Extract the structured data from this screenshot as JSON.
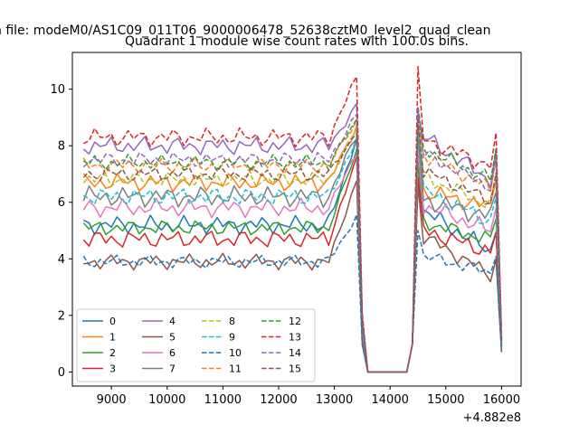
{
  "chart_data": {
    "type": "line",
    "suptitle": "n file: modeM0/AS1C09_011T06_9000006478_52638cztM0_level2_quad_clean",
    "title": "Quadrant 1 module wise count rates with 100.0s bins.",
    "xlabel": "",
    "ylabel": "",
    "offset_text": "+4.882e8",
    "xlim": [
      8300,
      16350
    ],
    "ylim": [
      -0.5,
      11.3
    ],
    "xticks": [
      9000,
      10000,
      11000,
      12000,
      13000,
      14000,
      15000,
      16000
    ],
    "yticks": [
      0,
      2,
      4,
      6,
      8,
      10
    ],
    "legend": {
      "position": "lower-left",
      "ncol": 4
    },
    "series": [
      {
        "name": "0",
        "color": "#1f77b4",
        "dash": "solid",
        "base": 5.2,
        "peak": 8.3,
        "after": 5.2,
        "ptA": 7.6,
        "ptB": 5.7,
        "end": 0.9,
        "amp": 0.35
      },
      {
        "name": "1",
        "color": "#ff7f0e",
        "dash": "solid",
        "base": 6.7,
        "peak": 8.7,
        "after": 7.1,
        "ptA": 8.6,
        "ptB": 6.4,
        "end": 1.1,
        "amp": 0.35
      },
      {
        "name": "2",
        "color": "#2ca02c",
        "dash": "solid",
        "base": 5.1,
        "peak": 7.8,
        "after": 5.7,
        "ptA": 7.4,
        "ptB": 5.3,
        "end": 1.0,
        "amp": 0.3
      },
      {
        "name": "3",
        "color": "#d62728",
        "dash": "solid",
        "base": 4.7,
        "peak": 7.5,
        "after": 5.2,
        "ptA": 6.9,
        "ptB": 5.0,
        "end": 0.8,
        "amp": 0.35
      },
      {
        "name": "4",
        "color": "#9467bd",
        "dash": "solid",
        "base": 8.0,
        "peak": 9.4,
        "after": 8.3,
        "ptA": 9.1,
        "ptB": 8.3,
        "end": 1.2,
        "amp": 0.35
      },
      {
        "name": "5",
        "color": "#8c564b",
        "dash": "solid",
        "base": 3.9,
        "peak": 6.8,
        "after": 4.2,
        "ptA": 6.6,
        "ptB": 4.8,
        "end": 0.7,
        "amp": 0.3
      },
      {
        "name": "6",
        "color": "#e377c2",
        "dash": "solid",
        "base": 5.8,
        "peak": 7.8,
        "after": 6.1,
        "ptA": 7.9,
        "ptB": 5.9,
        "end": 0.9,
        "amp": 0.35
      },
      {
        "name": "7",
        "color": "#7f7f7f",
        "dash": "solid",
        "base": 6.2,
        "peak": 8.4,
        "after": 6.7,
        "ptA": 8.4,
        "ptB": 6.1,
        "end": 0.9,
        "amp": 0.4
      },
      {
        "name": "8",
        "color": "#bcbd22",
        "dash": "dashed",
        "base": 6.8,
        "peak": 8.6,
        "after": 7.2,
        "ptA": 8.7,
        "ptB": 6.9,
        "end": 1.0,
        "amp": 0.3
      },
      {
        "name": "9",
        "color": "#17becf",
        "dash": "dashed",
        "base": 6.2,
        "peak": 8.2,
        "after": 6.5,
        "ptA": 8.6,
        "ptB": 6.4,
        "end": 1.0,
        "amp": 0.35
      },
      {
        "name": "10",
        "color": "#1f77b4",
        "dash": "dashed",
        "base": 3.9,
        "peak": 5.5,
        "after": 4.3,
        "ptA": 5.0,
        "ptB": 4.1,
        "end": 0.7,
        "amp": 0.25
      },
      {
        "name": "11",
        "color": "#ff7f0e",
        "dash": "dashed",
        "base": 7.3,
        "peak": 8.9,
        "after": 7.9,
        "ptA": 8.8,
        "ptB": 7.7,
        "end": 1.1,
        "amp": 0.3
      },
      {
        "name": "12",
        "color": "#2ca02c",
        "dash": "dashed",
        "base": 7.4,
        "peak": 8.9,
        "after": 8.3,
        "ptA": 9.4,
        "ptB": 7.9,
        "end": 1.1,
        "amp": 0.3
      },
      {
        "name": "13",
        "color": "#d62728",
        "dash": "dashed",
        "base": 8.3,
        "peak": 10.4,
        "after": 8.9,
        "ptA": 10.8,
        "ptB": 8.2,
        "end": 1.3,
        "amp": 0.35
      },
      {
        "name": "14",
        "color": "#9467bd",
        "dash": "dashed",
        "base": 7.5,
        "peak": 9.1,
        "after": 8.0,
        "ptA": 9.3,
        "ptB": 7.7,
        "end": 1.2,
        "amp": 0.3
      },
      {
        "name": "15",
        "color": "#8c564b",
        "dash": "dashed",
        "base": 7.0,
        "peak": 8.5,
        "after": 7.4,
        "ptA": 8.9,
        "ptB": 7.1,
        "end": 1.1,
        "amp": 0.3
      }
    ]
  }
}
